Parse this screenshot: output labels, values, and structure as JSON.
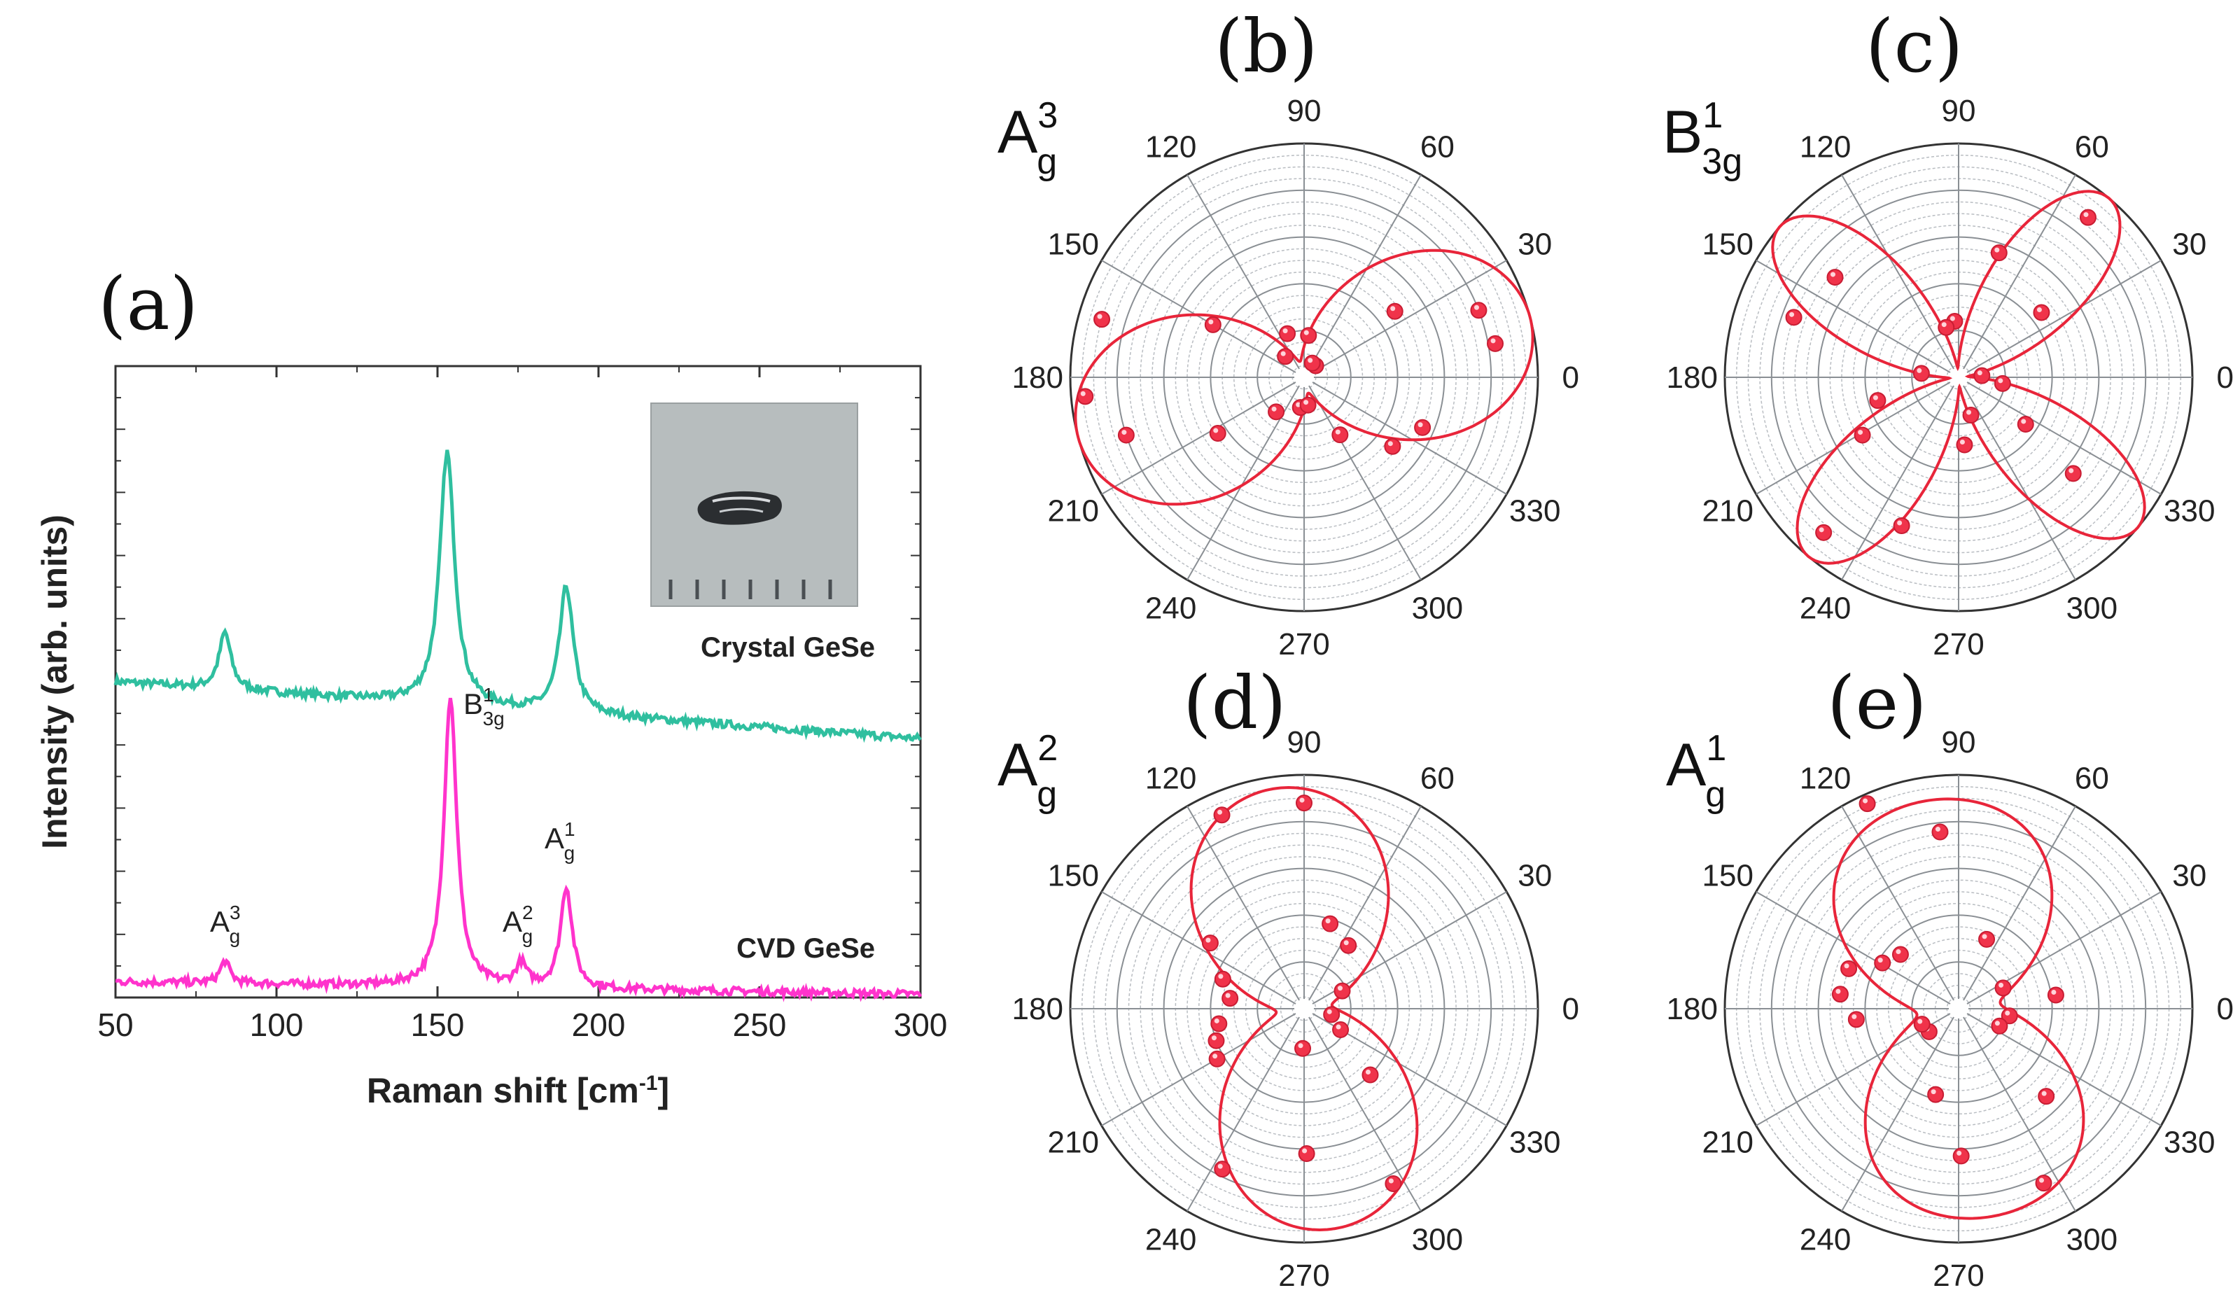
{
  "figure": {
    "panel_a_letter": "(a)"
  },
  "chart_data": [
    {
      "panel": "(a)",
      "type": "line",
      "xlabel_main": "Raman shift [cm",
      "xlabel_sup": "-1",
      "xlabel_end": "]",
      "ylabel": "Intensity (arb. units)",
      "xlim": [
        50,
        300
      ],
      "ylim": [
        0,
        10
      ],
      "xticks": [
        50,
        100,
        150,
        200,
        250,
        300
      ],
      "x_tick_labels": [
        "50",
        "100",
        "150",
        "200",
        "250",
        "300"
      ],
      "series": [
        {
          "name": "Crystal GeSe",
          "color": "#2fbf9f",
          "baseline": 5.0,
          "peaks": [
            {
              "center": 84,
              "height": 0.9,
              "width": 2.2
            },
            {
              "center": 153,
              "height": 4.0,
              "width": 2.8
            },
            {
              "center": 190,
              "height": 2.0,
              "width": 2.6
            }
          ],
          "end_value": 4.1
        },
        {
          "name": "CVD GeSe",
          "color": "#ff33cc",
          "baseline": 0.25,
          "peaks": [
            {
              "center": 84,
              "height": 0.35,
              "width": 1.8
            },
            {
              "center": 154,
              "height": 4.6,
              "width": 2.4
            },
            {
              "center": 176,
              "height": 0.35,
              "width": 2.0
            },
            {
              "center": 190,
              "height": 1.6,
              "width": 2.2
            }
          ],
          "end_value": 0.05
        }
      ],
      "peak_labels": [
        {
          "base": "A",
          "sub": "g",
          "sup": "3",
          "x": 84
        },
        {
          "base": "B",
          "sub": "3g",
          "sup": "1",
          "x": 154
        },
        {
          "base": "A",
          "sub": "g",
          "sup": "2",
          "x": 176
        },
        {
          "base": "A",
          "sub": "g",
          "sup": "1",
          "x": 190
        }
      ],
      "inset": "photo of crystal GeSe sample on grey background with ruler marks"
    },
    {
      "panel": "(b)",
      "type": "polar-scatter",
      "mode_base": "A",
      "mode_sub": "g",
      "mode_sup": "3",
      "angle_labels": [
        "0",
        "30",
        "60",
        "90",
        "120",
        "150",
        "180",
        "210",
        "240",
        "270",
        "300",
        "330"
      ],
      "fit_form": "lobes along 15 and 195 deg",
      "fit_params": {
        "a": 0.07,
        "b": 0.93,
        "phase_deg": 15,
        "n": 2,
        "c": 0.0
      },
      "points": [
        {
          "angle": 10,
          "r": 0.83
        },
        {
          "angle": 21,
          "r": 0.8
        },
        {
          "angle": 36,
          "r": 0.48
        },
        {
          "angle": 45,
          "r": 0.07
        },
        {
          "angle": 60,
          "r": 0.07
        },
        {
          "angle": 84,
          "r": 0.18
        },
        {
          "angle": 111,
          "r": 0.2
        },
        {
          "angle": 132,
          "r": 0.12
        },
        {
          "angle": 150,
          "r": 0.45
        },
        {
          "angle": 164,
          "r": 0.9
        },
        {
          "angle": 185,
          "r": 0.94
        },
        {
          "angle": 198,
          "r": 0.8
        },
        {
          "angle": 213,
          "r": 0.44
        },
        {
          "angle": 231,
          "r": 0.19
        },
        {
          "angle": 263,
          "r": 0.13
        },
        {
          "angle": 278,
          "r": 0.12
        },
        {
          "angle": 302,
          "r": 0.29
        },
        {
          "angle": 322,
          "r": 0.48
        },
        {
          "angle": 337,
          "r": 0.55
        }
      ]
    },
    {
      "panel": "(c)",
      "type": "polar-scatter",
      "mode_base": "B",
      "mode_sub": "3g",
      "mode_sup": "1",
      "angle_labels": [
        "0",
        "30",
        "60",
        "90",
        "120",
        "150",
        "180",
        "210",
        "240",
        "270",
        "300",
        "330"
      ],
      "fit_form": "four-lobe cos^2(2θ) pattern with lobes near 50/140/230/320 deg",
      "fit_params": {
        "a": 0.04,
        "b": 0.96,
        "phase_deg": 50,
        "n": 4,
        "c": 0.0
      },
      "points": [
        {
          "angle": 51,
          "r": 0.88
        },
        {
          "angle": 38,
          "r": 0.45
        },
        {
          "angle": 72,
          "r": 0.56
        },
        {
          "angle": 94,
          "r": 0.24
        },
        {
          "angle": 104,
          "r": 0.22
        },
        {
          "angle": 141,
          "r": 0.68
        },
        {
          "angle": 160,
          "r": 0.75
        },
        {
          "angle": 196,
          "r": 0.36
        },
        {
          "angle": 174,
          "r": 0.16
        },
        {
          "angle": 211,
          "r": 0.48
        },
        {
          "angle": 229,
          "r": 0.88
        },
        {
          "angle": 249,
          "r": 0.68
        },
        {
          "angle": 275,
          "r": 0.29
        },
        {
          "angle": 288,
          "r": 0.17
        },
        {
          "angle": 320,
          "r": 0.64
        },
        {
          "angle": 325,
          "r": 0.35
        },
        {
          "angle": 352,
          "r": 0.19
        },
        {
          "angle": 4,
          "r": 0.1
        }
      ]
    },
    {
      "panel": "(d)",
      "type": "polar-scatter",
      "mode_base": "A",
      "mode_sub": "g",
      "mode_sup": "2",
      "angle_labels": [
        "0",
        "30",
        "60",
        "90",
        "120",
        "150",
        "180",
        "210",
        "240",
        "270",
        "300",
        "330"
      ],
      "fit_form": "lobes along ~97 and ~277 deg, small side features",
      "fit_params": {
        "a": 0.12,
        "b": 0.83,
        "phase_deg": 97,
        "n": 2,
        "c": 0.05
      },
      "points": [
        {
          "angle": 90,
          "r": 0.88
        },
        {
          "angle": 113,
          "r": 0.9
        },
        {
          "angle": 73,
          "r": 0.38
        },
        {
          "angle": 55,
          "r": 0.33
        },
        {
          "angle": 25,
          "r": 0.18
        },
        {
          "angle": 348,
          "r": 0.12
        },
        {
          "angle": 330,
          "r": 0.18
        },
        {
          "angle": 315,
          "r": 0.4
        },
        {
          "angle": 297,
          "r": 0.84
        },
        {
          "angle": 271,
          "r": 0.62
        },
        {
          "angle": 268,
          "r": 0.17
        },
        {
          "angle": 243,
          "r": 0.77
        },
        {
          "angle": 210,
          "r": 0.43
        },
        {
          "angle": 200,
          "r": 0.4
        },
        {
          "angle": 190,
          "r": 0.37
        },
        {
          "angle": 172,
          "r": 0.32
        },
        {
          "angle": 160,
          "r": 0.37
        },
        {
          "angle": 145,
          "r": 0.49
        }
      ]
    },
    {
      "panel": "(e)",
      "type": "polar-scatter",
      "mode_base": "A",
      "mode_sub": "g",
      "mode_sup": "1",
      "angle_labels": [
        "0",
        "30",
        "60",
        "90",
        "120",
        "150",
        "180",
        "210",
        "240",
        "270",
        "300",
        "330"
      ],
      "fit_form": "elongated near 100/280 deg with small lobes near 10/180 deg",
      "fit_params": {
        "a": 0.18,
        "b": 0.72,
        "phase_deg": 98,
        "n": 2,
        "c": 0.12
      },
      "points": [
        {
          "angle": 96,
          "r": 0.76
        },
        {
          "angle": 114,
          "r": 0.96
        },
        {
          "angle": 68,
          "r": 0.32
        },
        {
          "angle": 25,
          "r": 0.21
        },
        {
          "angle": 8,
          "r": 0.42
        },
        {
          "angle": 352,
          "r": 0.22
        },
        {
          "angle": 337,
          "r": 0.19
        },
        {
          "angle": 315,
          "r": 0.53
        },
        {
          "angle": 296,
          "r": 0.83
        },
        {
          "angle": 271,
          "r": 0.63
        },
        {
          "angle": 255,
          "r": 0.38
        },
        {
          "angle": 218,
          "r": 0.16
        },
        {
          "angle": 203,
          "r": 0.17
        },
        {
          "angle": 186,
          "r": 0.44
        },
        {
          "angle": 173,
          "r": 0.51
        },
        {
          "angle": 160,
          "r": 0.5
        },
        {
          "angle": 149,
          "r": 0.38
        },
        {
          "angle": 137,
          "r": 0.34
        }
      ]
    }
  ]
}
